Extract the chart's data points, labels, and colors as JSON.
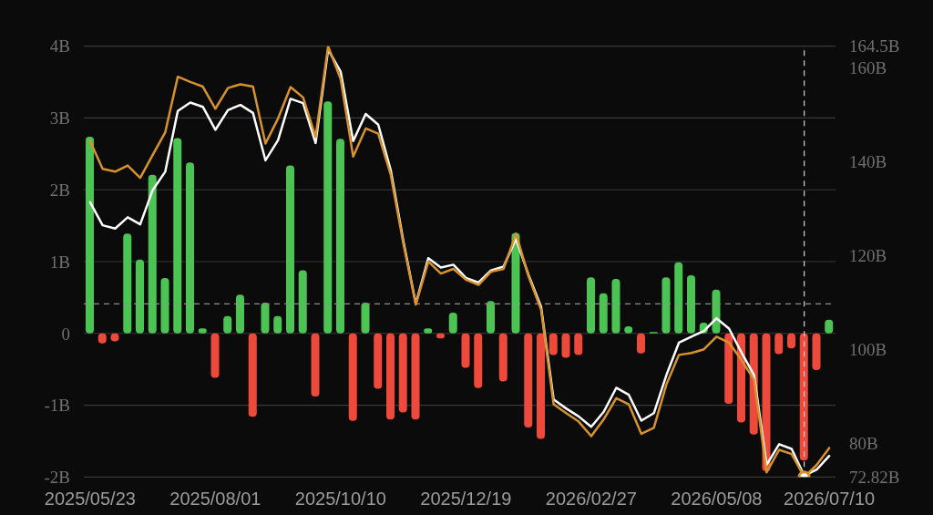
{
  "chart_data": {
    "type": "bar",
    "x": [
      "2025-05-23",
      "2025-05-30",
      "2025-06-06",
      "2025-06-13",
      "2025-06-20",
      "2025-06-27",
      "2025-07-04",
      "2025-07-11",
      "2025-07-18",
      "2025-07-25",
      "2025-08-01",
      "2025-08-08",
      "2025-08-15",
      "2025-08-22",
      "2025-08-29",
      "2025-09-05",
      "2025-09-12",
      "2025-09-19",
      "2025-09-26",
      "2025-10-03",
      "2025-10-10",
      "2025-10-17",
      "2025-10-24",
      "2025-10-31",
      "2025-11-07",
      "2025-11-14",
      "2025-11-21",
      "2025-11-28",
      "2025-12-05",
      "2025-12-12",
      "2025-12-19",
      "2025-12-26",
      "2026-01-02",
      "2026-01-09",
      "2026-01-16",
      "2026-01-23",
      "2026-01-30",
      "2026-02-06",
      "2026-02-13",
      "2026-02-20",
      "2026-02-27",
      "2026-03-06",
      "2026-03-13",
      "2026-03-20",
      "2026-03-27",
      "2026-04-03",
      "2026-04-10",
      "2026-04-17",
      "2026-04-24",
      "2026-05-01",
      "2026-05-08",
      "2026-05-15",
      "2026-05-22",
      "2026-05-29",
      "2026-06-05",
      "2026-06-12",
      "2026-06-19",
      "2026-06-26",
      "2026-07-03",
      "2026-07-10"
    ],
    "xlim": [
      "2025-05-19T12:00",
      "2026-07-13T12:00"
    ],
    "xticks": [
      {
        "value": "2025-05-23",
        "label": "2025/05/23"
      },
      {
        "value": "2025-08-01",
        "label": "2025/08/01"
      },
      {
        "value": "2025-10-10",
        "label": "2025/10/10"
      },
      {
        "value": "2025-12-19",
        "label": "2025/12/19"
      },
      {
        "value": "2026-02-27",
        "label": "2026/02/27"
      },
      {
        "value": "2026-05-08",
        "label": "2026/05/08"
      },
      {
        "value": "2026-07-10",
        "label": "2026/07/10"
      }
    ],
    "ylim": [
      -2,
      4
    ],
    "yticks": [
      {
        "value": -2,
        "label": "-2B"
      },
      {
        "value": -1,
        "label": "-1B"
      },
      0,
      {
        "value": 1,
        "label": "1B"
      },
      {
        "value": 2,
        "label": "2B"
      },
      {
        "value": 3,
        "label": "3B"
      },
      {
        "value": 4,
        "label": "4B"
      }
    ],
    "y2lim": [
      72.82,
      164.5
    ],
    "y2ticks": [
      {
        "value": 72.82,
        "label": "72.82B"
      },
      {
        "value": 80,
        "label": "80B"
      },
      {
        "value": 100,
        "label": "100B"
      },
      {
        "value": 120,
        "label": "120B"
      },
      {
        "value": 140,
        "label": "140B"
      },
      {
        "value": 160,
        "label": "160B"
      },
      {
        "value": 164.5,
        "label": "164.5B"
      }
    ],
    "grid": "y",
    "series": [
      {
        "values": [
          2.74,
          -0.14,
          -0.11,
          1.39,
          1.03,
          2.21,
          0.77,
          2.72,
          2.38,
          0.07,
          -0.62,
          0.24,
          0.54,
          -1.16,
          0.43,
          0.24,
          2.34,
          0.88,
          -0.88,
          3.23,
          2.71,
          -1.22,
          0.43,
          -0.77,
          -1.2,
          -1.1,
          -1.2,
          0.07,
          -0.07,
          0.29,
          -0.48,
          -0.76,
          0.45,
          -0.67,
          1.4,
          -1.31,
          -1.47,
          -0.3,
          -0.34,
          -0.3,
          0.78,
          0.56,
          0.76,
          0.1,
          -0.28,
          0.02,
          0.78,
          0.99,
          0.81,
          0.15,
          0.61,
          -0.98,
          -1.24,
          -1.41,
          -1.92,
          -0.29,
          -0.21,
          -1.77,
          -0.51,
          0.19
        ],
        "colors": [
          "#4cc453",
          "#ee4a3b",
          "#ee4a3b",
          "#4cc453",
          "#4cc453",
          "#4cc453",
          "#4cc453",
          "#4cc453",
          "#4cc453",
          "#4cc453",
          "#ee4a3b",
          "#4cc453",
          "#4cc453",
          "#ee4a3b",
          "#4cc453",
          "#4cc453",
          "#4cc453",
          "#4cc453",
          "#ee4a3b",
          "#4cc453",
          "#4cc453",
          "#ee4a3b",
          "#4cc453",
          "#ee4a3b",
          "#ee4a3b",
          "#ee4a3b",
          "#ee4a3b",
          "#4cc453",
          "#ee4a3b",
          "#4cc453",
          "#ee4a3b",
          "#ee4a3b",
          "#4cc453",
          "#ee4a3b",
          "#4cc453",
          "#ee4a3b",
          "#ee4a3b",
          "#ee4a3b",
          "#ee4a3b",
          "#ee4a3b",
          "#4cc453",
          "#4cc453",
          "#4cc453",
          "#4cc453",
          "#ee4a3b",
          "#4cc453",
          "#4cc453",
          "#4cc453",
          "#4cc453",
          "#4cc453",
          "#4cc453",
          "#ee4a3b",
          "#ee4a3b",
          "#ee4a3b",
          "#ee4a3b",
          "#ee4a3b",
          "#ee4a3b",
          "#ee4a3b",
          "#ee4a3b",
          "#4cc453"
        ]
      },
      {
        "type": "line",
        "color": "#ffffff",
        "axis": "y2",
        "values": [
          131.3,
          126.4,
          125.7,
          128.1,
          126.6,
          133.9,
          137.8,
          150.7,
          152.5,
          151.6,
          146.7,
          150.9,
          152.0,
          150.3,
          140.2,
          144.5,
          153.3,
          152.4,
          143.9,
          163.8,
          159.1,
          144.3,
          150.1,
          147.8,
          138.1,
          123.1,
          109.7,
          119.4,
          117.4,
          118.0,
          115.2,
          114.2,
          116.8,
          117.6,
          123.5,
          115.8,
          109.0,
          89.3,
          87.4,
          85.7,
          83.5,
          86.7,
          91.8,
          90.3,
          84.8,
          86.4,
          94.5,
          101.4,
          102.7,
          103.9,
          106.6,
          104.4,
          99.3,
          94.5,
          75.4,
          79.8,
          78.8,
          73.1,
          74.4,
          77.3
        ]
      },
      {
        "type": "line",
        "color": "#d8922c",
        "axis": "y2",
        "values": [
          144.3,
          138.4,
          137.8,
          139.1,
          136.5,
          141.4,
          146.2,
          158.0,
          156.9,
          155.9,
          151.2,
          155.6,
          156.4,
          155.9,
          143.8,
          149.1,
          155.8,
          153.6,
          145.2,
          164.5,
          157.5,
          141.0,
          147.0,
          145.9,
          137.1,
          122.6,
          109.5,
          118.7,
          116.1,
          117.1,
          114.8,
          113.7,
          116.5,
          117.1,
          124.6,
          115.5,
          108.4,
          88.3,
          86.4,
          84.6,
          81.5,
          85.1,
          89.6,
          88.3,
          82.0,
          83.3,
          92.5,
          98.8,
          99.2,
          100.0,
          102.7,
          101.4,
          97.7,
          93.5,
          73.8,
          78.6,
          77.7,
          72.82,
          75.4,
          79.0
        ]
      },
      {
        "type": "scatter",
        "color": "#d8922c",
        "axis": "y2",
        "marker": "circle",
        "x": [
          "2026-06-26"
        ],
        "values": [
          72.82
        ]
      }
    ],
    "ref_lines": [
      {
        "axis": "y",
        "value": 0.41,
        "color": "#8f8f8f",
        "line_style": "dashed"
      },
      {
        "axis": "x",
        "value": "2026-06-26",
        "color": "#c8c8c8",
        "line_style": "dashed"
      }
    ]
  }
}
